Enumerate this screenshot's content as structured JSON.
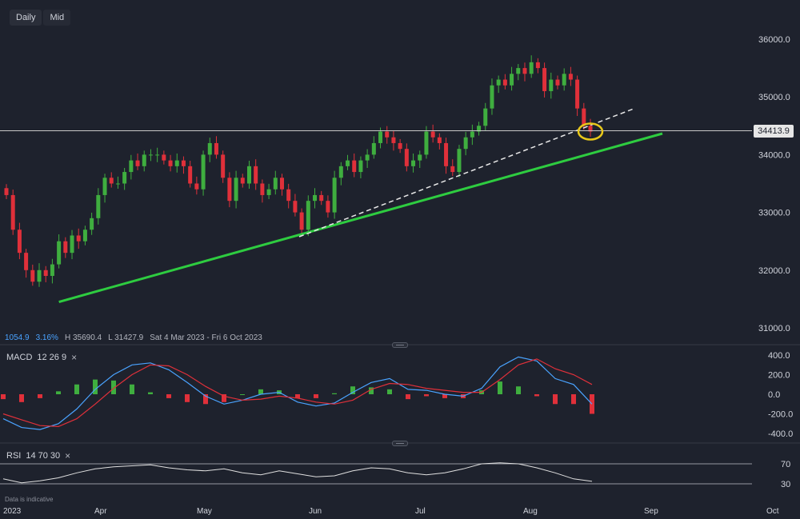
{
  "toolbar": {
    "timeframe": "Daily",
    "price_type": "Mid"
  },
  "header_stats": {
    "change": "1054.9",
    "change_pct": "3.16%",
    "high": "H 35690.4",
    "low": "L 31427.9",
    "range": "Sat 4 Mar 2023 - Fri 6 Oct 2023"
  },
  "current_price": "34413.9",
  "indicators": {
    "macd": {
      "name": "MACD",
      "params": "12  26  9"
    },
    "rsi": {
      "name": "RSI",
      "params": "14  70  30"
    }
  },
  "footer_note": "Data is indicative",
  "colors": {
    "up": "#3fae3f",
    "down": "#e0303a",
    "support": "#2ecc40",
    "highlight": "#e8c81a",
    "macd_line": "#4aa3ff",
    "signal_line": "#e0303a"
  },
  "chart_data": [
    {
      "type": "candlestick",
      "name": "price",
      "ylim": [
        31000,
        36000
      ],
      "y_ticks": [
        "36000.0",
        "35000.0",
        "34000.0",
        "33000.0",
        "32000.0",
        "31000.0"
      ],
      "x_ticks": [
        "2023",
        "Apr",
        "May",
        "Jun",
        "Jul",
        "Aug",
        "Sep",
        "Oct"
      ],
      "closes": [
        33300,
        32700,
        32300,
        32000,
        31800,
        32000,
        31900,
        32100,
        32500,
        32300,
        32600,
        32500,
        32700,
        32900,
        33300,
        33600,
        33500,
        33500,
        33700,
        33900,
        33800,
        34000,
        34000,
        34000,
        33900,
        33800,
        33900,
        33800,
        33500,
        33400,
        34000,
        34200,
        34000,
        33600,
        33200,
        33600,
        33500,
        33800,
        33500,
        33300,
        33400,
        33600,
        33400,
        33200,
        33000,
        32700,
        33200,
        33300,
        33200,
        33000,
        33600,
        33800,
        33900,
        33700,
        33900,
        34000,
        34200,
        34400,
        34300,
        34200,
        34100,
        33800,
        33900,
        34000,
        34400,
        34300,
        34200,
        33800,
        33700,
        34100,
        34300,
        34400,
        34500,
        34800,
        35200,
        35300,
        35200,
        35400,
        35500,
        35400,
        35600,
        35500,
        35100,
        35300,
        35200,
        35400,
        35300,
        34800,
        34500,
        34400
      ],
      "support_line": {
        "from": [
          "2023-03-17",
          31450
        ],
        "to": [
          "2023-09-01",
          34350
        ]
      },
      "trend_line": {
        "from": [
          "2023-05-25",
          32600
        ],
        "to": [
          "2023-09-01",
          34800
        ]
      },
      "horizontal_level": 34413.9,
      "highlight": "last candle"
    },
    {
      "type": "macd",
      "params": [
        12,
        26,
        9
      ],
      "ylim": [
        -400,
        400
      ],
      "y_ticks": [
        "400.0",
        "200.0",
        "0.0",
        "-200.0",
        "-400.0"
      ],
      "macd": [
        -250,
        -340,
        -360,
        -300,
        -150,
        50,
        200,
        300,
        320,
        250,
        120,
        -20,
        -100,
        -60,
        0,
        20,
        -80,
        -120,
        -90,
        20,
        120,
        160,
        50,
        40,
        0,
        -20,
        60,
        280,
        380,
        340,
        160,
        100,
        -100
      ],
      "signal": [
        -200,
        -260,
        -320,
        -330,
        -250,
        -100,
        60,
        200,
        300,
        290,
        200,
        80,
        -20,
        -60,
        -50,
        -20,
        -40,
        -80,
        -100,
        -60,
        50,
        110,
        100,
        60,
        40,
        20,
        20,
        150,
        300,
        360,
        260,
        200,
        100
      ],
      "histogram": [
        -50,
        -80,
        -40,
        30,
        100,
        150,
        140,
        100,
        20,
        -40,
        -80,
        -100,
        -80,
        0,
        50,
        40,
        -40,
        -40,
        10,
        80,
        70,
        50,
        -50,
        -20,
        -40,
        -40,
        40,
        130,
        80,
        -20,
        -100,
        -100,
        -200
      ]
    },
    {
      "type": "rsi",
      "params": [
        14,
        70,
        30
      ],
      "y_ticks": [
        "70",
        "30"
      ],
      "values": [
        40,
        32,
        36,
        42,
        52,
        60,
        64,
        66,
        68,
        62,
        58,
        56,
        60,
        52,
        48,
        56,
        50,
        44,
        46,
        56,
        62,
        60,
        52,
        48,
        52,
        60,
        70,
        72,
        70,
        62,
        52,
        40,
        35
      ]
    }
  ]
}
